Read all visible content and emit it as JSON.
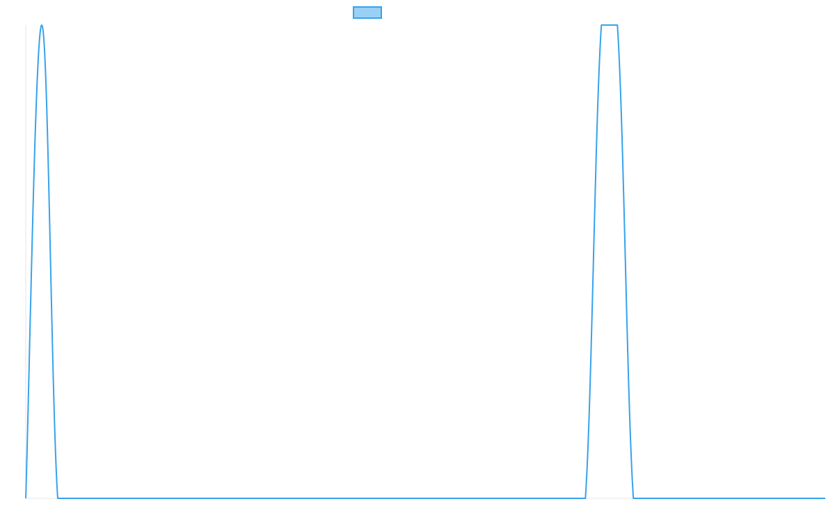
{
  "chart_data": {
    "type": "line",
    "title": "",
    "xlabel": "",
    "ylabel": "",
    "x": [
      0,
      1,
      2,
      3,
      4,
      5,
      6,
      7,
      8,
      9,
      10,
      11,
      12,
      13,
      14,
      15,
      16,
      17,
      18,
      19,
      20,
      21,
      22,
      23,
      24,
      25,
      26,
      27,
      28,
      29,
      30,
      31,
      32,
      33,
      34,
      35,
      36,
      37,
      38,
      39,
      40,
      41,
      42,
      43,
      44,
      45,
      46,
      47,
      48,
      49,
      50
    ],
    "series": [
      {
        "name": "",
        "values": [
          0,
          1,
          0,
          0,
          0,
          0,
          0,
          0,
          0,
          0,
          0,
          0,
          0,
          0,
          0,
          0,
          0,
          0,
          0,
          0,
          0,
          0,
          0,
          0,
          0,
          0,
          0,
          0,
          0,
          0,
          0,
          0,
          0,
          0,
          0,
          0,
          1,
          1,
          0,
          0,
          0,
          0,
          0,
          0,
          0,
          0,
          0,
          0,
          0,
          0,
          0
        ]
      }
    ],
    "ylim": [
      0,
      1
    ],
    "grid": false,
    "legend": {
      "position": "top-center"
    },
    "colors": {
      "line": "#36a2eb",
      "legend_fill": "#9ad0f5",
      "axis": "#e5e5e5"
    }
  }
}
